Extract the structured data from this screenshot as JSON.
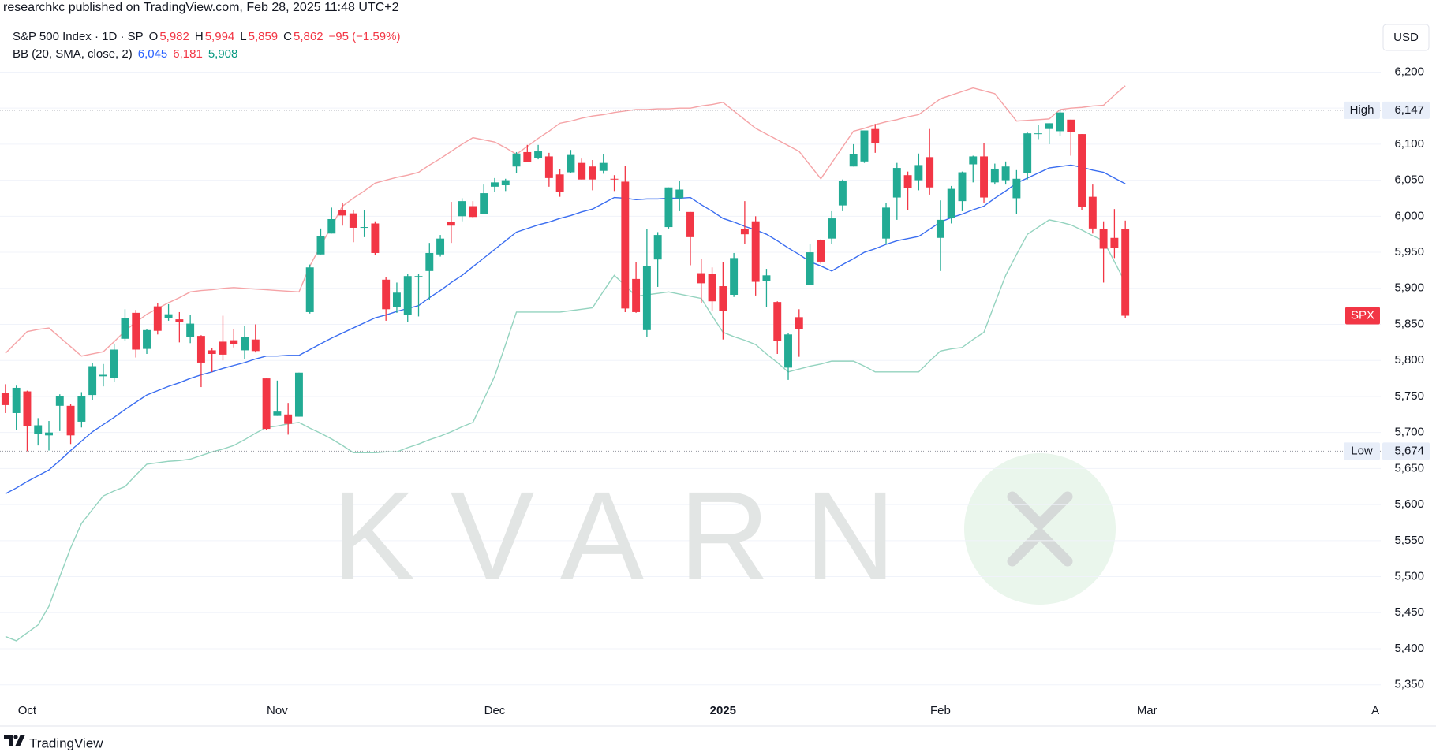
{
  "attribution": "researchkc published on TradingView.com, Feb 28, 2025 11:48 UTC+2",
  "currency": "USD",
  "watermark": "KVARN",
  "footer": {
    "brand": "TradingView"
  },
  "chart_data": {
    "type": "candlestick",
    "legend": {
      "symbol": "S&P 500 Index · 1D · SP",
      "color": "#f23645",
      "ohlc": [
        {
          "key": "O",
          "value": "5,982"
        },
        {
          "key": "H",
          "value": "5,994"
        },
        {
          "key": "L",
          "value": "5,859"
        },
        {
          "key": "C",
          "value": "5,862"
        }
      ],
      "change": "−95 (−1.59%)"
    },
    "indicator": {
      "name": "BB (20, SMA, close, 2)",
      "values": [
        {
          "text": "6,045",
          "color": "#2962ff"
        },
        {
          "text": "6,181",
          "color": "#f23645"
        },
        {
          "text": "5,908",
          "color": "#089981"
        }
      ]
    },
    "symbol_badge": "SPX",
    "up_color": "#22ab94",
    "down_color": "#f23645",
    "ylim": [
      5330,
      6300
    ],
    "yticks": [
      {
        "value": 5350,
        "label": "5,350"
      },
      {
        "value": 5400,
        "label": "5,400"
      },
      {
        "value": 5450,
        "label": "5,450"
      },
      {
        "value": 5500,
        "label": "5,500"
      },
      {
        "value": 5550,
        "label": "5,550"
      },
      {
        "value": 5600,
        "label": "5,600"
      },
      {
        "value": 5650,
        "label": "5,650"
      },
      {
        "value": 5700,
        "label": "5,700"
      },
      {
        "value": 5750,
        "label": "5,750"
      },
      {
        "value": 5800,
        "label": "5,800"
      },
      {
        "value": 5850,
        "label": "5,850"
      },
      {
        "value": 5900,
        "label": "5,900"
      },
      {
        "value": 5950,
        "label": "5,950"
      },
      {
        "value": 6000,
        "label": "6,000"
      },
      {
        "value": 6050,
        "label": "6,050"
      },
      {
        "value": 6100,
        "label": "6,100"
      },
      {
        "value": 6150,
        "label": "6,150"
      },
      {
        "value": 6200,
        "label": "6,200"
      }
    ],
    "grid": true,
    "price_lines": [
      {
        "name": "High",
        "value": 6147,
        "label": "6,147"
      },
      {
        "name": "Low",
        "value": 5674,
        "label": "5,674"
      }
    ],
    "categories": [
      null,
      null,
      "Oct",
      null,
      null,
      null,
      null,
      null,
      null,
      null,
      null,
      null,
      null,
      null,
      null,
      null,
      null,
      null,
      null,
      null,
      null,
      null,
      null,
      null,
      null,
      "Nov",
      null,
      null,
      null,
      null,
      null,
      null,
      null,
      null,
      null,
      null,
      null,
      null,
      null,
      null,
      null,
      null,
      null,
      null,
      null,
      "Dec",
      null,
      null,
      null,
      null,
      null,
      null,
      null,
      null,
      null,
      null,
      null,
      null,
      null,
      null,
      null,
      null,
      null,
      null,
      null,
      null,
      "2025",
      null,
      null,
      null,
      null,
      null,
      null,
      null,
      null,
      null,
      null,
      null,
      null,
      null,
      null,
      null,
      null,
      null,
      null,
      null,
      "Feb",
      null,
      null,
      null,
      null,
      null,
      null,
      null,
      null,
      null,
      null,
      null,
      null,
      null,
      null,
      null,
      null,
      null,
      null,
      "Mar",
      null,
      null,
      null,
      null,
      null,
      null,
      null,
      null,
      null,
      null,
      null,
      null,
      null,
      null,
      null,
      null,
      null,
      null,
      null,
      null,
      "A"
    ],
    "open": [
      5755,
      5727,
      5757,
      5698,
      5696,
      5737,
      5737,
      5715,
      5752,
      5778,
      5776,
      5830,
      5866,
      5816,
      5875,
      5859,
      5857,
      5833,
      5834,
      5814,
      5826,
      5828,
      5814,
      5829,
      5775,
      5723,
      5725,
      5722,
      5867,
      5947,
      5976,
      6008,
      6004,
      5985,
      5990,
      5912,
      5874,
      5863,
      5917,
      5924,
      5947,
      5992,
      6000,
      6014,
      6003,
      6041,
      6043,
      6069,
      6089,
      6081,
      6083,
      6058,
      6061,
      6074,
      6069,
      6063,
      6052,
      6048,
      5913,
      5842,
      5940,
      5985,
      6025,
      6006,
      5921,
      5920,
      5903,
      5891,
      5982,
      5993,
      5910,
      5881,
      5790,
      5860,
      5905,
      5967,
      5969,
      6015,
      6069,
      6076,
      6121,
      5969,
      6026,
      6057,
      6050,
      6082,
      5970,
      5998,
      6021,
      6072,
      6083,
      6047,
      6050,
      6025,
      6060,
      6115,
      6121,
      6118,
      6134,
      6114,
      6027,
      5982,
      5970,
      5982,
      null,
      null,
      null,
      null,
      null,
      null,
      null,
      null,
      null,
      null,
      null,
      null,
      null,
      null,
      null,
      null,
      null,
      null,
      null,
      null,
      null,
      null,
      null
    ],
    "high": [
      5767,
      5765,
      5758,
      5720,
      5716,
      5753,
      5739,
      5756,
      5796,
      5795,
      5823,
      5871,
      5870,
      5843,
      5879,
      5878,
      5867,
      5863,
      5835,
      5817,
      5862,
      5843,
      5848,
      5850,
      5775,
      5772,
      5741,
      5783,
      5933,
      5983,
      6012,
      6018,
      6009,
      6008,
      5993,
      5916,
      5908,
      5920,
      5920,
      5963,
      5974,
      6020,
      6025,
      6021,
      6044,
      6053,
      6052,
      6089,
      6099,
      6099,
      6088,
      6065,
      6092,
      6080,
      6078,
      6086,
      6057,
      6070,
      5936,
      5982,
      5978,
      6040,
      6049,
      6006,
      5941,
      5929,
      5936,
      5949,
      6021,
      6000,
      5927,
      5882,
      5838,
      5871,
      5961,
      5968,
      6007,
      6051,
      6100,
      6119,
      6128,
      6018,
      6074,
      6062,
      6087,
      6121,
      6022,
      6042,
      6062,
      6084,
      6101,
      6073,
      6076,
      6064,
      6116,
      6127,
      6129,
      6147,
      6134,
      6114,
      6044,
      5993,
      6010,
      5994,
      null,
      null,
      null,
      null,
      null,
      null,
      null,
      null,
      null,
      null,
      null,
      null,
      null,
      null,
      null,
      null,
      null,
      null,
      null,
      null,
      null,
      null,
      null
    ],
    "low": [
      5727,
      5704,
      5674,
      5682,
      5675,
      5702,
      5684,
      5707,
      5745,
      5764,
      5770,
      5827,
      5804,
      5809,
      5836,
      5855,
      5825,
      5824,
      5763,
      5784,
      5800,
      5818,
      5802,
      5811,
      5703,
      5723,
      5697,
      5722,
      5865,
      5947,
      5976,
      5987,
      5964,
      5971,
      5946,
      5855,
      5866,
      5853,
      5861,
      5884,
      5944,
      5963,
      5993,
      5997,
      6003,
      6034,
      6035,
      6060,
      6075,
      6079,
      6041,
      6027,
      6060,
      6051,
      6036,
      6059,
      6035,
      5867,
      5866,
      5832,
      5902,
      5983,
      6007,
      5932,
      5880,
      5869,
      5829,
      5888,
      5961,
      5890,
      5874,
      5809,
      5773,
      5805,
      5905,
      5934,
      5961,
      6007,
      6069,
      6074,
      6088,
      5962,
      5995,
      6008,
      6036,
      6030,
      5924,
      5990,
      6007,
      6047,
      6019,
      6044,
      6044,
      6003,
      6051,
      6107,
      6100,
      6111,
      6084,
      6009,
      5976,
      5908,
      5942,
      5859,
      null,
      null,
      null,
      null,
      null,
      null,
      null,
      null,
      null,
      null,
      null,
      null,
      null,
      null,
      null,
      null,
      null,
      null,
      null,
      null,
      null,
      null,
      null
    ],
    "close": [
      5738,
      5762,
      5709,
      5710,
      5700,
      5751,
      5696,
      5751,
      5792,
      5780,
      5815,
      5859,
      5815,
      5842,
      5841,
      5864,
      5853,
      5851,
      5797,
      5809,
      5808,
      5823,
      5833,
      5813,
      5705,
      5729,
      5712,
      5783,
      5929,
      5973,
      5996,
      6001,
      5984,
      5985,
      5949,
      5871,
      5894,
      5917,
      5917,
      5949,
      5969,
      5987,
      6021,
      5999,
      6032,
      6047,
      6050,
      6087,
      6075,
      6090,
      6053,
      6034,
      6085,
      6051,
      6051,
      6074,
      6051,
      5872,
      5867,
      5931,
      5974,
      6040,
      6037,
      5971,
      5907,
      5882,
      5869,
      5942,
      5975,
      5909,
      5918,
      5827,
      5836,
      5843,
      5950,
      5937,
      5997,
      6049,
      6086,
      6119,
      6101,
      6012,
      6067,
      6039,
      6071,
      6040,
      5995,
      6038,
      6061,
      6083,
      6026,
      6066,
      6069,
      6052,
      6115,
      6115,
      6129,
      6144,
      6117,
      6013,
      5983,
      5955,
      5956,
      5862,
      null,
      null,
      null,
      null,
      null,
      null,
      null,
      null,
      null,
      null,
      null,
      null,
      null,
      null,
      null,
      null,
      null,
      null,
      null,
      null,
      null,
      null,
      null
    ],
    "overlays": [
      {
        "type": "line",
        "color": "#3a6df0",
        "values": [
          5615,
          5623,
          5632,
          5640,
          5648,
          5661,
          5675,
          5688,
          5701,
          5711,
          5721,
          5732,
          5742,
          5752,
          5758,
          5764,
          5769,
          5775,
          5780,
          5784,
          5789,
          5793,
          5797,
          5802,
          5806,
          5806,
          5807,
          5807,
          5815,
          5823,
          5831,
          5838,
          5845,
          5852,
          5859,
          5863,
          5868,
          5872,
          5876,
          5887,
          5897,
          5908,
          5918,
          5930,
          5942,
          5954,
          5966,
          5978,
          5983,
          5988,
          5992,
          5997,
          6001,
          6006,
          6010,
          6018,
          6026,
          6025,
          6023,
          6024,
          6024,
          6025,
          6025,
          6026,
          6016,
          6007,
          5997,
          5992,
          5986,
          5981,
          5975,
          5966,
          5956,
          5947,
          5937,
          5931,
          5924,
          5933,
          5941,
          5950,
          5955,
          5961,
          5966,
          5969,
          5972,
          5982,
          5992,
          5998,
          6003,
          6009,
          6014,
          6025,
          6035,
          6046,
          6053,
          6060,
          6067,
          6069,
          6071,
          6068,
          6064,
          6061,
          6053,
          6045,
          null,
          null,
          null,
          null,
          null,
          null,
          null,
          null,
          null,
          null,
          null,
          null,
          null,
          null,
          null,
          null,
          null,
          null,
          null,
          null,
          null,
          null,
          null
        ]
      },
      {
        "type": "line",
        "color": "#f5a3a6",
        "values": [
          5810,
          5825,
          5840,
          5843,
          5845,
          5832,
          5819,
          5806,
          5809,
          5812,
          5826,
          5841,
          5853,
          5864,
          5872,
          5880,
          5887,
          5895,
          5897,
          5898,
          5900,
          5901,
          5900,
          5899,
          5898,
          5897,
          5896,
          5895,
          5931,
          5959,
          5986,
          6014,
          6025,
          6035,
          6046,
          6050,
          6054,
          6057,
          6061,
          6071,
          6080,
          6090,
          6100,
          6109,
          6106,
          6103,
          6095,
          6086,
          6097,
          6108,
          6118,
          6129,
          6132,
          6136,
          6139,
          6141,
          6144,
          6146,
          6148,
          6148,
          6149,
          6149,
          6150,
          6150,
          6153,
          6155,
          6158,
          6146,
          6134,
          6122,
          6114,
          6106,
          6098,
          6090,
          6071,
          6052,
          6074,
          6096,
          6118,
          6122,
          6127,
          6131,
          6134,
          6138,
          6141,
          6152,
          6163,
          6168,
          6173,
          6178,
          6174,
          6170,
          6151,
          6132,
          6133,
          6134,
          6135,
          6148,
          6150,
          6151,
          6153,
          6154,
          6168,
          6181,
          null,
          null,
          null,
          null,
          null,
          null,
          null,
          null,
          null,
          null,
          null,
          null,
          null,
          null,
          null,
          null,
          null,
          null,
          null,
          null,
          null,
          null,
          null
        ]
      },
      {
        "type": "line",
        "color": "#94d3bf",
        "values": [
          5417,
          5411,
          5422,
          5433,
          5459,
          5500,
          5540,
          5574,
          5593,
          5612,
          5619,
          5625,
          5641,
          5656,
          5658,
          5660,
          5661,
          5663,
          5668,
          5673,
          5677,
          5682,
          5690,
          5699,
          5707,
          5709,
          5712,
          5714,
          5706,
          5699,
          5691,
          5682,
          5672,
          5672,
          5672,
          5673,
          5673,
          5679,
          5684,
          5690,
          5695,
          5701,
          5708,
          5714,
          5746,
          5778,
          5822,
          5867,
          5867,
          5867,
          5867,
          5867,
          5869,
          5871,
          5873,
          5896,
          5918,
          5904,
          5889,
          5891,
          5893,
          5895,
          5892,
          5889,
          5886,
          5862,
          5839,
          5833,
          5828,
          5822,
          5809,
          5797,
          5784,
          5788,
          5792,
          5795,
          5799,
          5799,
          5799,
          5792,
          5784,
          5784,
          5784,
          5784,
          5784,
          5799,
          5813,
          5816,
          5818,
          5829,
          5839,
          5879,
          5918,
          5947,
          5975,
          5985,
          5995,
          5992,
          5988,
          5981,
          5973,
          5966,
          5937,
          5908,
          null,
          null,
          null,
          null,
          null,
          null,
          null,
          null,
          null,
          null,
          null,
          null,
          null,
          null,
          null,
          null,
          null,
          null,
          null,
          null,
          null,
          null,
          null
        ]
      }
    ]
  }
}
